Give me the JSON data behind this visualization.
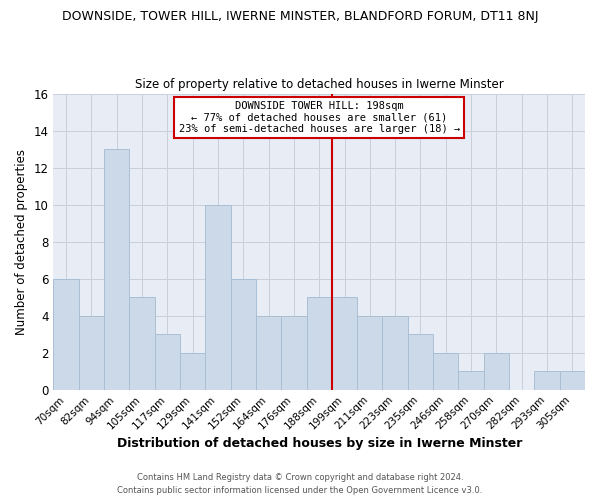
{
  "title": "DOWNSIDE, TOWER HILL, IWERNE MINSTER, BLANDFORD FORUM, DT11 8NJ",
  "subtitle": "Size of property relative to detached houses in Iwerne Minster",
  "xlabel": "Distribution of detached houses by size in Iwerne Minster",
  "ylabel": "Number of detached properties",
  "bar_labels": [
    "70sqm",
    "82sqm",
    "94sqm",
    "105sqm",
    "117sqm",
    "129sqm",
    "141sqm",
    "152sqm",
    "164sqm",
    "176sqm",
    "188sqm",
    "199sqm",
    "211sqm",
    "223sqm",
    "235sqm",
    "246sqm",
    "258sqm",
    "270sqm",
    "282sqm",
    "293sqm",
    "305sqm"
  ],
  "bar_values": [
    6,
    4,
    13,
    5,
    3,
    2,
    10,
    6,
    4,
    4,
    5,
    5,
    4,
    4,
    3,
    2,
    1,
    2,
    0,
    1,
    1
  ],
  "bar_color": "#ccd9e8",
  "bar_edge_color": "#aabfd4",
  "vline_x": 10.5,
  "vline_color": "#cc0000",
  "annotation_title": "DOWNSIDE TOWER HILL: 198sqm",
  "annotation_line1": "← 77% of detached houses are smaller (61)",
  "annotation_line2": "23% of semi-detached houses are larger (18) →",
  "annotation_box_color": "#ffffff",
  "annotation_box_edge": "#cc0000",
  "ylim": [
    0,
    16
  ],
  "yticks": [
    0,
    2,
    4,
    6,
    8,
    10,
    12,
    14,
    16
  ],
  "footer1": "Contains HM Land Registry data © Crown copyright and database right 2024.",
  "footer2": "Contains public sector information licensed under the Open Government Licence v3.0.",
  "background_color": "#ffffff",
  "grid_color": "#c8d0dc"
}
